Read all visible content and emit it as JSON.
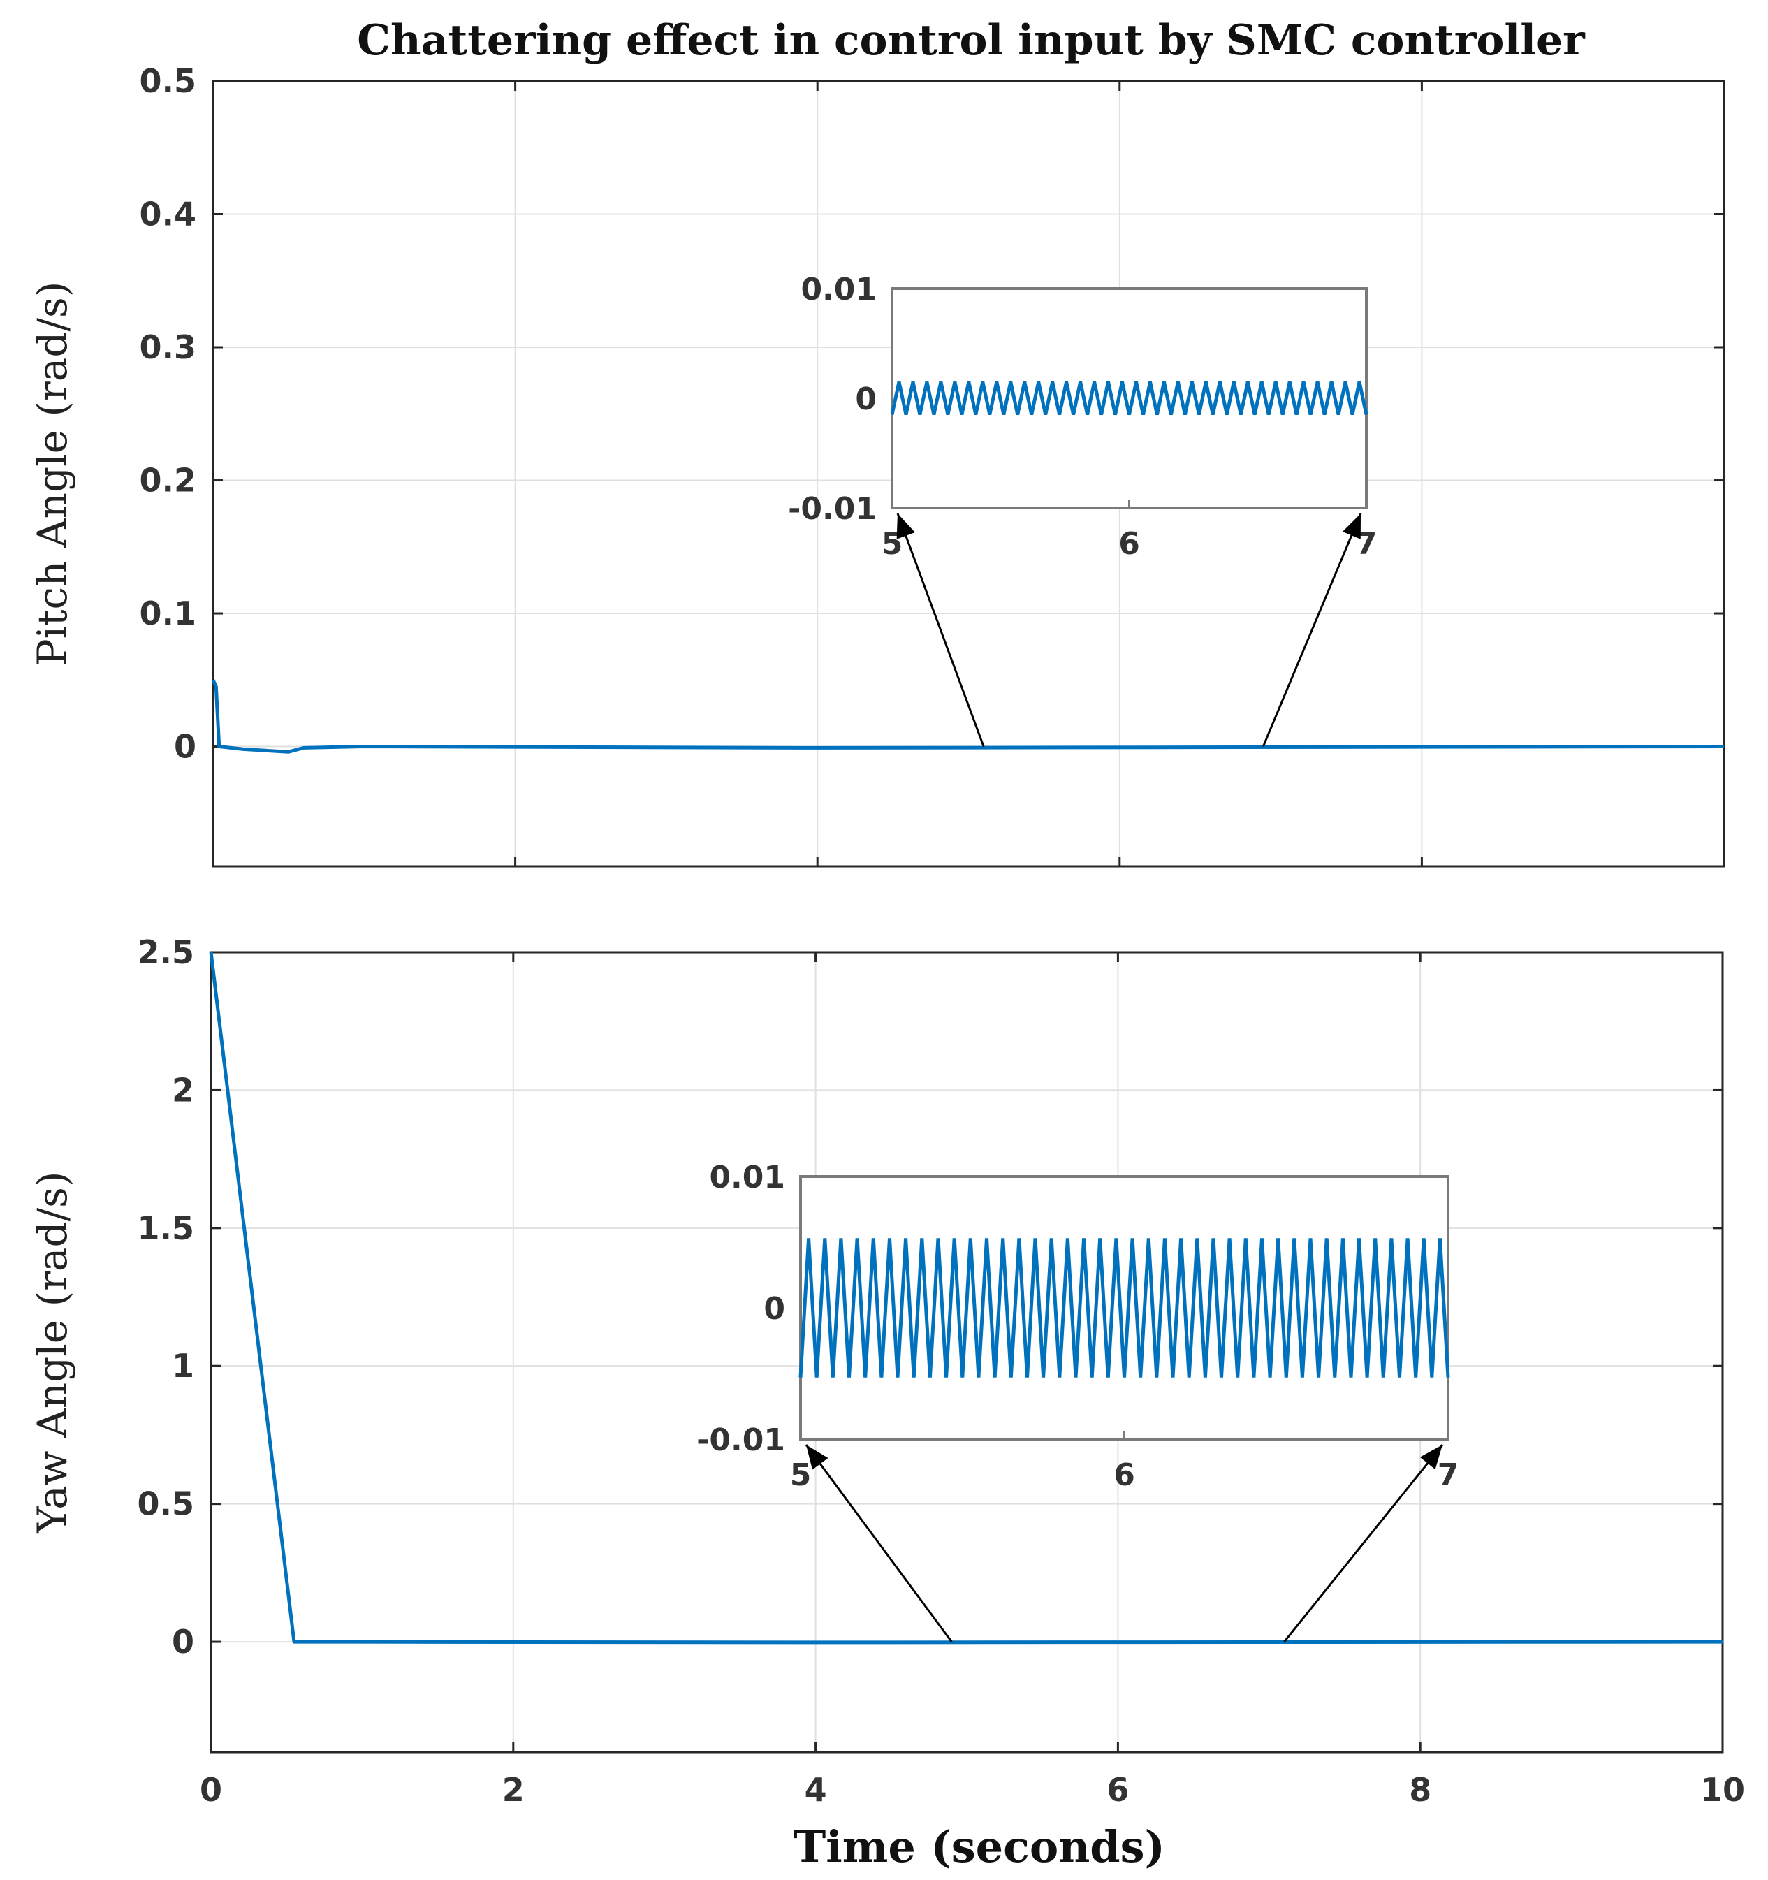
{
  "chart_data": {
    "type": "line",
    "title": "Chattering effect in control input by SMC controller",
    "xlabel": "Time (seconds)",
    "line_color": "#0072BD",
    "panels": [
      {
        "id": "pitch",
        "ylabel": "Pitch Angle (rad/s)",
        "xlim": [
          0,
          10
        ],
        "ylim": [
          -0.09,
          0.5
        ],
        "yticks": [
          0,
          0.1,
          0.2,
          0.3,
          0.4,
          0.5
        ],
        "ytick_labels": [
          "0",
          "0.1",
          "0.2",
          "0.3",
          "0.4",
          "0.5"
        ],
        "xticks": [
          0,
          2,
          4,
          6,
          8,
          10
        ],
        "series": [
          {
            "name": "pitch",
            "x": [
              0,
              0.02,
              0.04,
              0.2,
              0.5,
              0.6,
              1.0,
              4.0,
              10.0
            ],
            "y": [
              0.05,
              0.045,
              0.0,
              -0.002,
              -0.004,
              -0.001,
              0.0,
              -0.001,
              0.0
            ]
          }
        ],
        "inset": {
          "xlim": [
            5,
            7
          ],
          "ylim": [
            -0.01,
            0.01
          ],
          "xticks": [
            5,
            6,
            7
          ],
          "xtick_labels": [
            "5",
            "6",
            "7"
          ],
          "yticks": [
            -0.01,
            0,
            0.01
          ],
          "ytick_labels": [
            "-0.01",
            "0",
            "0.01"
          ],
          "chatter_amplitude": 0.0015,
          "chatter_cycles": 34,
          "zoom_from": [
            5.1,
            6.95
          ]
        }
      },
      {
        "id": "yaw",
        "ylabel": "Yaw Angle (rad/s)",
        "xlim": [
          0,
          10
        ],
        "ylim": [
          -0.4,
          2.5
        ],
        "yticks": [
          0,
          0.5,
          1,
          1.5,
          2,
          2.5
        ],
        "ytick_labels": [
          "0",
          "0.5",
          "1",
          "1.5",
          "2",
          "2.5"
        ],
        "xticks": [
          0,
          2,
          4,
          6,
          8,
          10
        ],
        "xtick_labels": [
          "0",
          "2",
          "4",
          "6",
          "8",
          "10"
        ],
        "series": [
          {
            "name": "yaw",
            "x": [
              0,
              0.55,
              0.6,
              4.0,
              10.0
            ],
            "y": [
              2.5,
              0.0,
              0.0,
              -0.002,
              0.0
            ]
          }
        ],
        "inset": {
          "xlim": [
            5,
            7
          ],
          "ylim": [
            -0.01,
            0.01
          ],
          "xticks": [
            5,
            6,
            7
          ],
          "xtick_labels": [
            "5",
            "6",
            "7"
          ],
          "yticks": [
            -0.01,
            0,
            0.01
          ],
          "ytick_labels": [
            "-0.01",
            "0",
            "0.01"
          ],
          "chatter_amplitude": 0.0053,
          "chatter_cycles": 40,
          "zoom_from": [
            4.9,
            7.1
          ]
        }
      }
    ]
  }
}
